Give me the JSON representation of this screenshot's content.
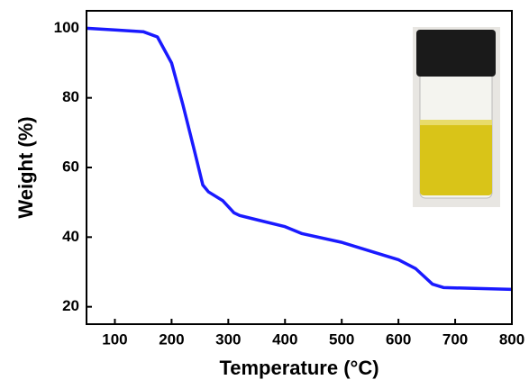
{
  "chart_data": {
    "type": "line",
    "x_label": "Temperature (°C)",
    "y_label": "Weight (%)",
    "x": [
      50,
      100,
      150,
      175,
      200,
      220,
      240,
      255,
      265,
      290,
      310,
      320,
      350,
      400,
      430,
      500,
      550,
      600,
      630,
      660,
      680,
      800
    ],
    "series": [
      {
        "color": "#1a1aff",
        "values": [
          100,
          99.5,
          99,
          97.5,
          90,
          78,
          65,
          55,
          53,
          50.5,
          47,
          46.2,
          45,
          43,
          41,
          38.5,
          36,
          33.5,
          31,
          26.5,
          25.5,
          25
        ]
      }
    ],
    "xlim": [
      50,
      800
    ],
    "ylim": [
      15,
      105
    ],
    "xticks": [
      100,
      200,
      300,
      400,
      500,
      600,
      700,
      800
    ],
    "yticks": [
      20,
      40,
      60,
      80,
      100
    ]
  }
}
